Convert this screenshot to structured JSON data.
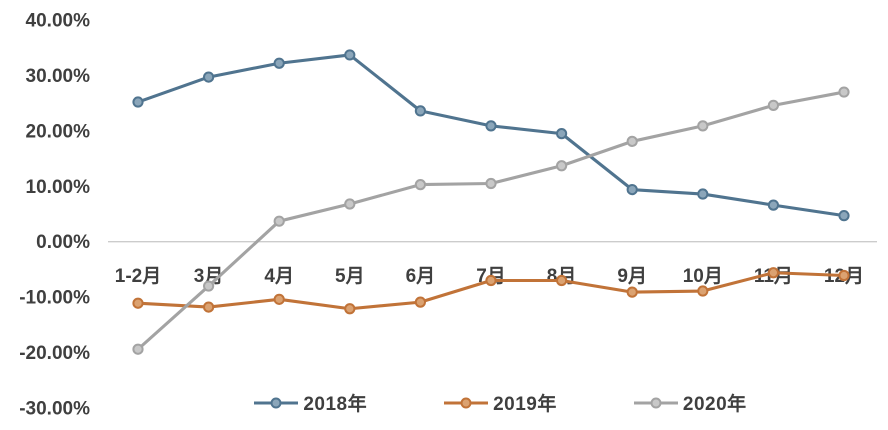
{
  "chart_data": {
    "type": "line",
    "title": "",
    "xlabel": "",
    "ylabel": "",
    "categories": [
      "1-2月",
      "3月",
      "4月",
      "5月",
      "6月",
      "7月",
      "8月",
      "9月",
      "10月",
      "11月",
      "12月"
    ],
    "series": [
      {
        "name": "2018年",
        "color": "#50748f",
        "marker_fill": "#8ba6ba",
        "values": [
          25.2,
          29.7,
          32.2,
          33.7,
          23.6,
          20.9,
          19.5,
          9.4,
          8.6,
          6.6,
          4.7
        ]
      },
      {
        "name": "2019年",
        "color": "#c17338",
        "marker_fill": "#dba271",
        "values": [
          -11.1,
          -11.8,
          -10.4,
          -12.1,
          -10.9,
          -7.0,
          -7.0,
          -9.1,
          -8.9,
          -5.6,
          -6.1
        ]
      },
      {
        "name": "2020年",
        "color": "#a3a3a3",
        "marker_fill": "#c8c8c8",
        "values": [
          -19.4,
          -8.0,
          3.7,
          6.8,
          10.3,
          10.5,
          13.7,
          18.1,
          20.9,
          24.6,
          27.0
        ]
      }
    ],
    "y_axis": {
      "min": -30,
      "max": 40,
      "step": 10,
      "tick_labels": [
        "40.00%",
        "30.00%",
        "20.00%",
        "10.00%",
        "0.00%",
        "-10.00%",
        "-20.00%",
        "-30.00%"
      ]
    },
    "grid": "zero-line-only",
    "legend_position": "bottom",
    "colors": {
      "axis_text": "#3f3f3f",
      "zero_line": "#cccccc",
      "background": "#ffffff"
    }
  }
}
